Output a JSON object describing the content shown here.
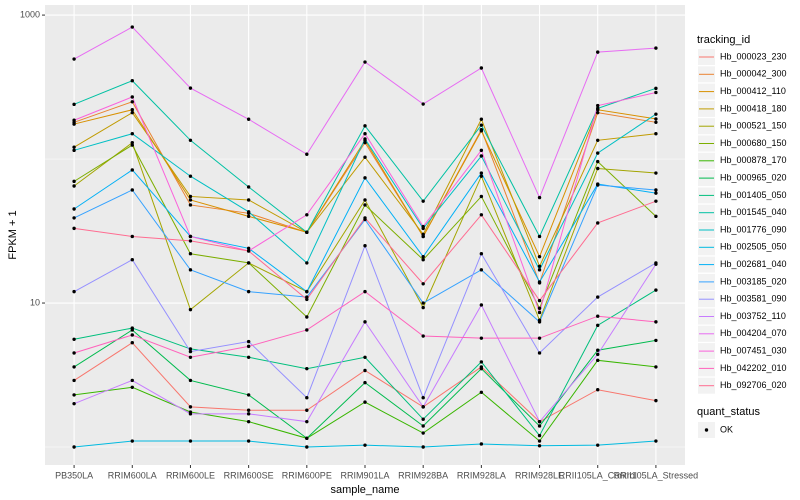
{
  "chart_data": {
    "type": "line",
    "x_label": "sample_name",
    "y_label": "FPKM + 1",
    "categories": [
      "PB350LA",
      "RRIM600LA",
      "RRIM600LE",
      "RRIM600SE",
      "RRIM600PE",
      "RRIM901LA",
      "RRIM928BA",
      "RRIM928LA",
      "RRIM928LE",
      "RRII105LA_Control",
      "RRII105LA_Stressed"
    ],
    "log_y": true,
    "grid": true,
    "ylim": [
      0.75,
      1175
    ],
    "yticks": [
      10,
      1000
    ],
    "legend_title": "tracking_id",
    "legend2_title": "quant_status",
    "legend2_entry": "OK",
    "point_color": "#000000",
    "series": [
      {
        "name": "Hb_000023_230",
        "color": "#F8766D",
        "values": [
          2.9,
          5.3,
          1.9,
          1.8,
          1.8,
          3.4,
          1.9,
          3.6,
          1.5,
          2.5,
          2.1
        ]
      },
      {
        "name": "Hb_000042_300",
        "color": "#EA8331",
        "values": [
          180,
          250,
          48,
          42,
          31,
          130,
          29,
          160,
          13.8,
          210,
          180
        ]
      },
      {
        "name": "Hb_000412_110",
        "color": "#D89000",
        "values": [
          175,
          220,
          52,
          40,
          31,
          135,
          29,
          157,
          21,
          220,
          190
        ]
      },
      {
        "name": "Hb_000418_180",
        "color": "#C09B00",
        "values": [
          121,
          210,
          55,
          52,
          31,
          103,
          30,
          189,
          18,
          135,
          150
        ]
      },
      {
        "name": "Hb_000521_150",
        "color": "#A3A500",
        "values": [
          65,
          130,
          9,
          19,
          12,
          52,
          9.3,
          76,
          7.6,
          86,
          80
        ]
      },
      {
        "name": "Hb_000680_150",
        "color": "#7CAE00",
        "values": [
          70,
          125,
          22,
          19,
          8,
          48,
          20,
          55,
          9.2,
          96,
          40
        ]
      },
      {
        "name": "Hb_000878_170",
        "color": "#39B600",
        "values": [
          2.3,
          2.6,
          1.75,
          1.5,
          1.15,
          2.05,
          1.25,
          2.4,
          1.1,
          4,
          3.6
        ]
      },
      {
        "name": "Hb_000965_020",
        "color": "#00BB4E",
        "values": [
          3.6,
          6.5,
          2.9,
          2.3,
          1.15,
          2.8,
          1.4,
          3.5,
          1.4,
          4.7,
          5.5
        ]
      },
      {
        "name": "Hb_001405_050",
        "color": "#00BF7D",
        "values": [
          5.6,
          6.7,
          4.8,
          4.2,
          3.5,
          4.2,
          1.56,
          3.9,
          1.2,
          7,
          12.3
        ]
      },
      {
        "name": "Hb_001545_040",
        "color": "#00C1A3",
        "values": [
          240,
          350,
          135,
          64,
          31,
          170,
          51,
          172,
          29,
          225,
          310
        ]
      },
      {
        "name": "Hb_001776_090",
        "color": "#00BFC4",
        "values": [
          115,
          150,
          76,
          43,
          19,
          138,
          33,
          105,
          17,
          110,
          205
        ]
      },
      {
        "name": "Hb_002505_050",
        "color": "#00BAE0",
        "values": [
          1.0,
          1.1,
          1.1,
          1.1,
          1.0,
          1.03,
          1.0,
          1.05,
          1.02,
          1.03,
          1.1
        ]
      },
      {
        "name": "Hb_002681_040",
        "color": "#00B0F6",
        "values": [
          45,
          84,
          29,
          24,
          12,
          74,
          21,
          80,
          14,
          67,
          58
        ]
      },
      {
        "name": "Hb_003185_020",
        "color": "#35A2FF",
        "values": [
          39,
          61,
          17,
          12,
          11,
          38,
          10,
          17,
          7.4,
          66,
          61
        ]
      },
      {
        "name": "Hb_003581_090",
        "color": "#9590FF",
        "values": [
          12,
          20,
          4.6,
          5.4,
          2.2,
          25,
          2.2,
          22,
          4.5,
          11,
          19
        ]
      },
      {
        "name": "Hb_003752_110",
        "color": "#C77CFF",
        "values": [
          2,
          2.9,
          1.7,
          1.7,
          1.5,
          7.4,
          1.9,
          9.7,
          1.5,
          4.4,
          18.6
        ]
      },
      {
        "name": "Hb_004204_070",
        "color": "#E76BF3",
        "values": [
          495,
          826,
          311,
          189,
          108,
          472,
          241,
          429,
          54,
          553,
          590
        ]
      },
      {
        "name": "Hb_007451_030",
        "color": "#FA62DB",
        "values": [
          186,
          270,
          29,
          23,
          41,
          150,
          34,
          115,
          8.6,
          235,
          290
        ]
      },
      {
        "name": "Hb_042202_010",
        "color": "#FF62BC",
        "values": [
          4.5,
          6,
          4.2,
          5,
          6.5,
          12,
          5.9,
          5.7,
          5.7,
          8.1,
          7.4
        ]
      },
      {
        "name": "Hb_092706_020",
        "color": "#FF6C91",
        "values": [
          33,
          29,
          27,
          23,
          10.6,
          39,
          13.6,
          41,
          10.4,
          36,
          51
        ]
      }
    ]
  }
}
